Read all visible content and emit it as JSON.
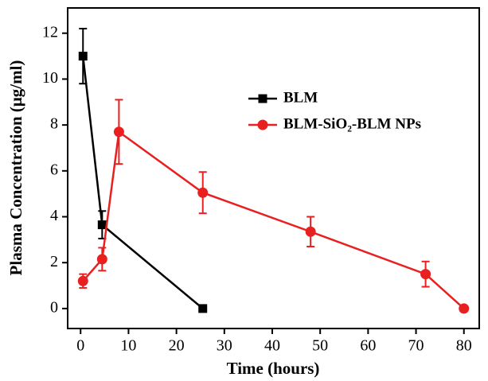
{
  "chart_data": {
    "type": "line",
    "xlabel": "Time (hours)",
    "ylabel": "Plasma Concentration (μg/ml)",
    "xlim": [
      -2.7,
      83.2
    ],
    "xticks": [
      0,
      10,
      20,
      30,
      40,
      50,
      60,
      70,
      80
    ],
    "ylim": [
      -0.87,
      13.1
    ],
    "yticks": [
      0,
      2,
      4,
      6,
      8,
      10,
      12
    ],
    "series": [
      {
        "name": "BLM",
        "color": "#000000",
        "marker": "square",
        "x": [
          0.5,
          4.5,
          25.5
        ],
        "values": [
          11.0,
          3.65,
          0
        ],
        "errors": [
          1.2,
          0.6,
          null
        ]
      },
      {
        "name": "BLM-SiO₂-BLM NPs",
        "color": "#e8201f",
        "marker": "circle",
        "x": [
          0.5,
          4.5,
          8,
          25.5,
          48,
          72,
          80
        ],
        "values": [
          1.2,
          2.15,
          7.7,
          5.05,
          3.35,
          1.5,
          0
        ],
        "errors": [
          0.3,
          0.5,
          1.4,
          0.9,
          0.65,
          0.55,
          null
        ]
      }
    ]
  }
}
